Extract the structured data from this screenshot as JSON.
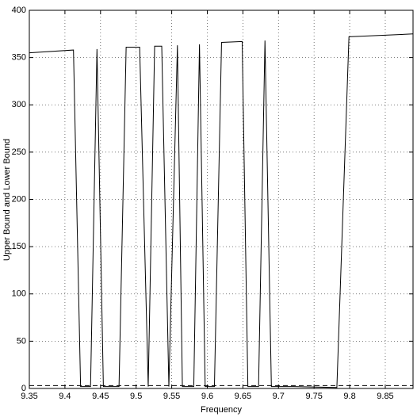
{
  "chart_data": {
    "type": "line",
    "xlabel": "Frequency",
    "ylabel": "Upper Bound and Lower Bound",
    "series": [
      {
        "color": "#000000",
        "style": "solid",
        "x": [
          9.35,
          9.412,
          9.422,
          9.436,
          9.445,
          9.454,
          9.476,
          9.486,
          9.505,
          9.517,
          9.526,
          9.536,
          9.546,
          9.558,
          9.565,
          9.581,
          9.589,
          9.597,
          9.61,
          9.62,
          9.649,
          9.657,
          9.672,
          9.681,
          9.69,
          9.721,
          9.782,
          9.799,
          9.889
        ],
        "values": [
          355,
          358,
          2,
          2,
          359,
          2,
          2,
          361,
          361,
          2,
          362,
          362,
          2,
          363,
          2,
          2,
          364,
          2,
          2,
          366,
          367,
          2,
          2,
          368,
          2,
          2,
          1,
          372,
          375
        ]
      },
      {
        "color": "#000000",
        "style": "dashed",
        "x": [
          9.35,
          9.889
        ],
        "values": [
          3,
          3
        ]
      }
    ],
    "xlim": [
      9.35,
      9.889
    ],
    "ylim": [
      0,
      400
    ],
    "xticks": [
      9.35,
      9.4,
      9.45,
      9.5,
      9.55,
      9.6,
      9.65,
      9.7,
      9.75,
      9.8,
      9.85
    ],
    "yticks": [
      0,
      50,
      100,
      150,
      200,
      250,
      300,
      350,
      400
    ],
    "grid": true
  }
}
